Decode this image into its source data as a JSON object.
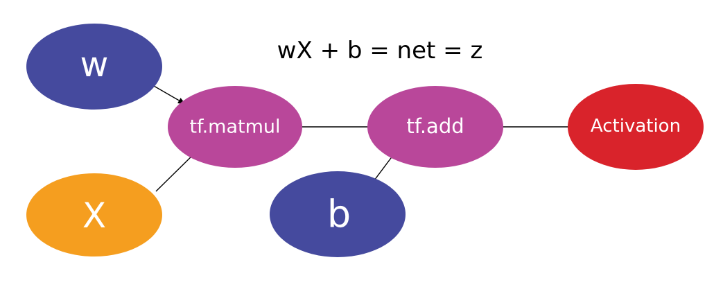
{
  "diagram": {
    "equation": "wX + b = net = z",
    "nodes": [
      {
        "id": "w",
        "label": "w",
        "color": "#454a9e"
      },
      {
        "id": "x",
        "label": "X",
        "color": "#f59e1f"
      },
      {
        "id": "matmul",
        "label": "tf.matmul",
        "color": "#b9479a"
      },
      {
        "id": "add",
        "label": "tf.add",
        "color": "#b9479a"
      },
      {
        "id": "b",
        "label": "b",
        "color": "#454a9e"
      },
      {
        "id": "activation",
        "label": "Activation",
        "color": "#d9232b"
      }
    ],
    "edges": [
      {
        "from": "w",
        "to": "matmul"
      },
      {
        "from": "x",
        "to": "matmul"
      },
      {
        "from": "matmul",
        "to": "add"
      },
      {
        "from": "b",
        "to": "add"
      },
      {
        "from": "add",
        "to": "activation"
      }
    ]
  }
}
